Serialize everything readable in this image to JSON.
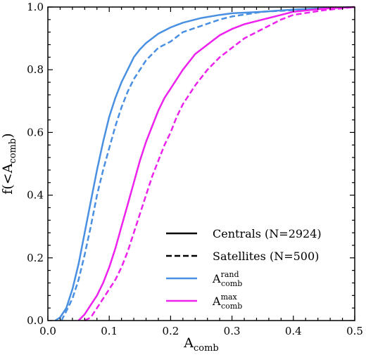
{
  "chart_data": {
    "type": "line",
    "xlabel": "A",
    "xlabel_sub": "comb",
    "ylabel_prefix": "f(<A",
    "ylabel_sub": "comb",
    "ylabel_suffix": ")",
    "xlim": [
      0.0,
      0.5
    ],
    "ylim": [
      0.0,
      1.0
    ],
    "xticks": [
      "0.0",
      "0.1",
      "0.2",
      "0.3",
      "0.4",
      "0.5"
    ],
    "yticks": [
      "0.0",
      "0.2",
      "0.4",
      "0.6",
      "0.8",
      "1.0"
    ],
    "grid": false,
    "legend_position": "bottom-right",
    "legend": {
      "linestyles": [
        {
          "label": "Centrals (N=2924)",
          "style": "solid"
        },
        {
          "label": "Satellites (N=500)",
          "style": "dashed"
        }
      ],
      "colors": [
        {
          "label_main": "A",
          "label_sub": "comb",
          "label_sup": "rand",
          "color": "#4a90e2"
        },
        {
          "label_main": "A",
          "label_sub": "comb",
          "label_sup": "max",
          "color": "#ee22ee"
        }
      ]
    },
    "series": [
      {
        "color": "#4a90e2",
        "style": "solid",
        "x": [
          0.012,
          0.02,
          0.03,
          0.04,
          0.05,
          0.06,
          0.07,
          0.08,
          0.09,
          0.1,
          0.11,
          0.12,
          0.13,
          0.14,
          0.15,
          0.16,
          0.17,
          0.18,
          0.2,
          0.22,
          0.25,
          0.28,
          0.3,
          0.35,
          0.4,
          0.45,
          0.5
        ],
        "y": [
          0.0,
          0.01,
          0.04,
          0.1,
          0.18,
          0.28,
          0.38,
          0.48,
          0.57,
          0.65,
          0.71,
          0.76,
          0.8,
          0.84,
          0.865,
          0.885,
          0.9,
          0.915,
          0.935,
          0.95,
          0.965,
          0.975,
          0.98,
          0.985,
          0.992,
          0.996,
          1.0
        ]
      },
      {
        "color": "#4a90e2",
        "style": "dashed",
        "x": [
          0.022,
          0.03,
          0.04,
          0.05,
          0.06,
          0.07,
          0.08,
          0.09,
          0.1,
          0.11,
          0.12,
          0.13,
          0.14,
          0.15,
          0.16,
          0.17,
          0.18,
          0.2,
          0.22,
          0.25,
          0.28,
          0.3,
          0.35,
          0.4,
          0.45,
          0.5
        ],
        "y": [
          0.0,
          0.03,
          0.07,
          0.13,
          0.21,
          0.3,
          0.4,
          0.48,
          0.55,
          0.62,
          0.68,
          0.73,
          0.77,
          0.8,
          0.83,
          0.85,
          0.87,
          0.89,
          0.92,
          0.94,
          0.96,
          0.97,
          0.985,
          0.99,
          0.996,
          1.0
        ]
      },
      {
        "color": "#ee22ee",
        "style": "solid",
        "x": [
          0.05,
          0.06,
          0.07,
          0.08,
          0.09,
          0.1,
          0.11,
          0.12,
          0.13,
          0.14,
          0.15,
          0.16,
          0.17,
          0.18,
          0.19,
          0.2,
          0.22,
          0.24,
          0.26,
          0.28,
          0.3,
          0.32,
          0.35,
          0.38,
          0.4,
          0.45,
          0.5
        ],
        "y": [
          0.0,
          0.02,
          0.05,
          0.08,
          0.12,
          0.17,
          0.23,
          0.3,
          0.37,
          0.44,
          0.51,
          0.57,
          0.62,
          0.67,
          0.71,
          0.74,
          0.8,
          0.85,
          0.88,
          0.91,
          0.93,
          0.945,
          0.96,
          0.975,
          0.985,
          0.995,
          1.0
        ]
      },
      {
        "color": "#ee22ee",
        "style": "dashed",
        "x": [
          0.06,
          0.07,
          0.08,
          0.09,
          0.1,
          0.11,
          0.12,
          0.13,
          0.14,
          0.15,
          0.16,
          0.17,
          0.18,
          0.19,
          0.2,
          0.21,
          0.22,
          0.23,
          0.24,
          0.26,
          0.28,
          0.3,
          0.32,
          0.35,
          0.38,
          0.4,
          0.45,
          0.5
        ],
        "y": [
          0.0,
          0.01,
          0.04,
          0.07,
          0.1,
          0.13,
          0.17,
          0.22,
          0.28,
          0.34,
          0.4,
          0.46,
          0.51,
          0.56,
          0.6,
          0.65,
          0.69,
          0.72,
          0.75,
          0.8,
          0.84,
          0.87,
          0.9,
          0.93,
          0.96,
          0.975,
          0.99,
          1.0
        ]
      }
    ]
  }
}
